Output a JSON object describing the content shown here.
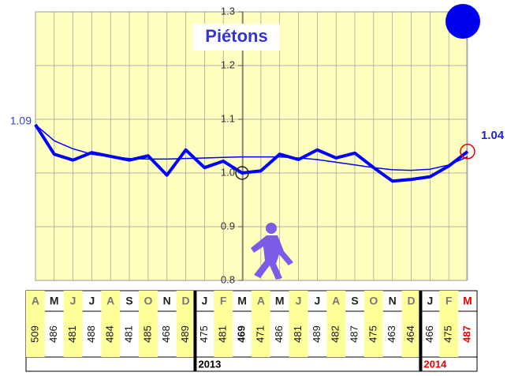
{
  "chart_data": {
    "type": "line",
    "title": "Piétons",
    "categories": [
      "A",
      "M",
      "J",
      "J",
      "A",
      "S",
      "O",
      "N",
      "D",
      "J",
      "F",
      "M",
      "A",
      "M",
      "J",
      "J",
      "A",
      "S",
      "O",
      "N",
      "D",
      "J",
      "F",
      "M"
    ],
    "series": [
      {
        "color": "#0000ff",
        "values": [
          1.09,
          1.035,
          1.024,
          1.038,
          1.031,
          1.024,
          1.032,
          0.996,
          1.043,
          1.01,
          1.022,
          1.0,
          1.004,
          1.035,
          1.025,
          1.043,
          1.028,
          1.037,
          1.01,
          0.985,
          0.988,
          0.993,
          1.013,
          1.04
        ]
      },
      {
        "color": "#0000ff",
        "values": [
          1.09,
          1.06,
          1.045,
          1.035,
          1.03,
          1.027,
          1.026,
          1.026,
          1.027,
          1.028,
          1.029,
          1.03,
          1.03,
          1.03,
          1.028,
          1.025,
          1.02,
          1.015,
          1.01,
          1.006,
          1.005,
          1.007,
          1.015,
          1.03
        ]
      }
    ],
    "counts": [
      509,
      486,
      481,
      488,
      484,
      481,
      485,
      468,
      489,
      475,
      481,
      469,
      471,
      486,
      481,
      489,
      482,
      487,
      475,
      463,
      464,
      466,
      475,
      487
    ],
    "years": [
      "2013",
      "2014"
    ],
    "ylim": [
      0.8,
      1.3
    ],
    "yticks": [
      0.8,
      0.9,
      {
        "value": 1,
        "label": "1.0"
      },
      1.1,
      1.2,
      1.3
    ],
    "grid": true
  }
}
